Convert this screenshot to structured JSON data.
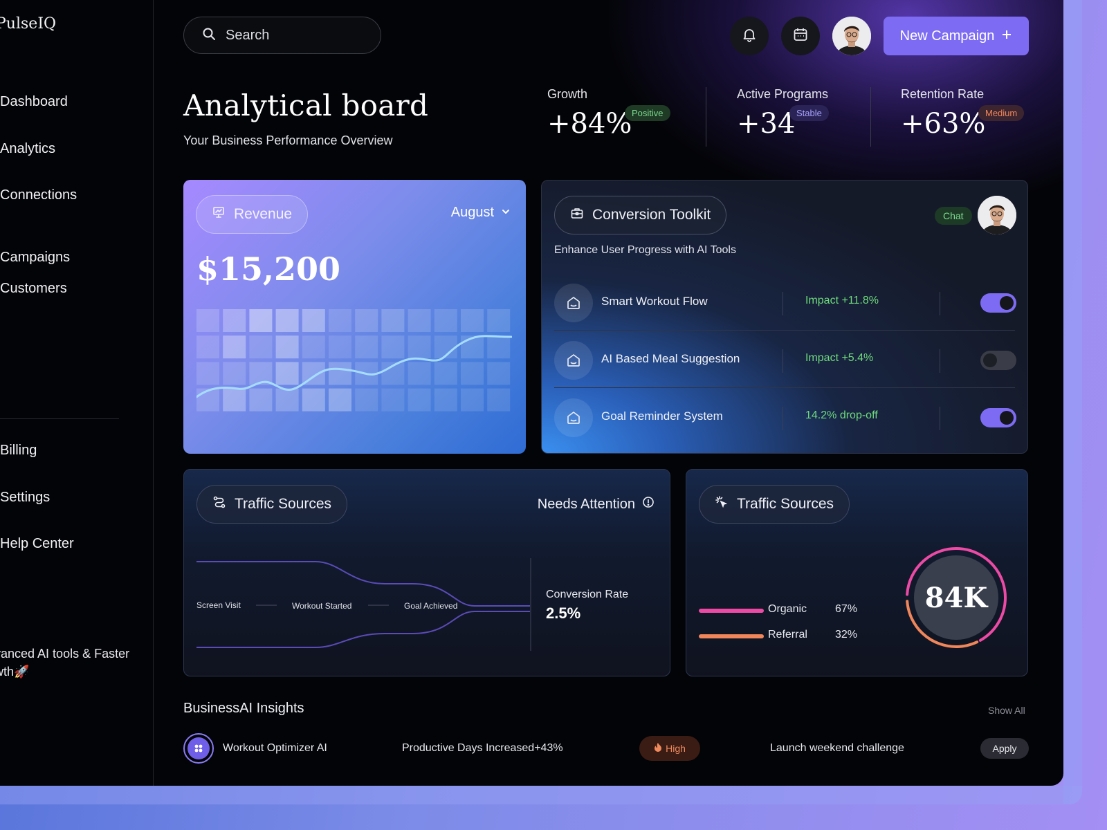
{
  "app": {
    "logo": "PulseIQ"
  },
  "sidebar": {
    "items": [
      {
        "label": "Dashboard"
      },
      {
        "label": "Analytics"
      },
      {
        "label": "Connections"
      },
      {
        "label": "Campaigns"
      },
      {
        "label": "Customers"
      },
      {
        "label": "Billing"
      },
      {
        "label": "Settings"
      },
      {
        "label": "Help Center"
      }
    ],
    "promo_line1": "vanced AI tools & Faster",
    "promo_line2": "wth🚀"
  },
  "header": {
    "search_placeholder": "Search",
    "new_campaign_label": "New Campaign",
    "new_campaign_icon": "plus-icon",
    "accent_color": "#7d6cf3"
  },
  "page": {
    "title": "Analytical board",
    "subtitle": "Your Business Performance Overview"
  },
  "stats": [
    {
      "label": "Growth",
      "value": "+84%",
      "badge": "Positive",
      "badge_color": "#7ddc8f"
    },
    {
      "label": "Active Programs",
      "value": "+34",
      "badge": "Stable",
      "badge_color": "#a9a2ff"
    },
    {
      "label": "Retention Rate",
      "value": "+63%",
      "badge": "Medium",
      "badge_color": "#f0865a"
    }
  ],
  "revenue": {
    "title": "Revenue",
    "month": "August",
    "amount": "$15,200"
  },
  "toolkit": {
    "title": "Conversion Toolkit",
    "chat_label": "Chat",
    "description": "Enhance User Progress with AI Tools",
    "tools": [
      {
        "name": "Smart Workout Flow",
        "impact": "Impact +11.8%",
        "enabled": true
      },
      {
        "name": "AI Based Meal Suggestion",
        "impact": "Impact +5.4%",
        "enabled": false
      },
      {
        "name": "Goal Reminder System",
        "impact": "14.2% drop-off",
        "enabled": true
      }
    ]
  },
  "traffic_funnel": {
    "title": "Traffic Sources",
    "status": "Needs Attention",
    "stages": [
      "Screen Visit",
      "Workout Started",
      "Goal Achieved"
    ],
    "conversion_label": "Conversion Rate",
    "conversion_value": "2.5%"
  },
  "traffic_split": {
    "title": "Traffic Sources",
    "total": "84K",
    "sources": [
      {
        "name": "Organic",
        "pct": "67%",
        "value": 0.67,
        "color": "#ec4aa5"
      },
      {
        "name": "Referral",
        "pct": "32%",
        "value": 0.32,
        "color": "#f0865a"
      }
    ]
  },
  "insights": {
    "title": "BusinessAI Insights",
    "show_all": "Show All",
    "row": {
      "name": "Workout Optimizer AI",
      "metric": "Productive Days Increased+43%",
      "priority": "High",
      "action_text": "Launch weekend challenge",
      "button": "Apply"
    }
  }
}
